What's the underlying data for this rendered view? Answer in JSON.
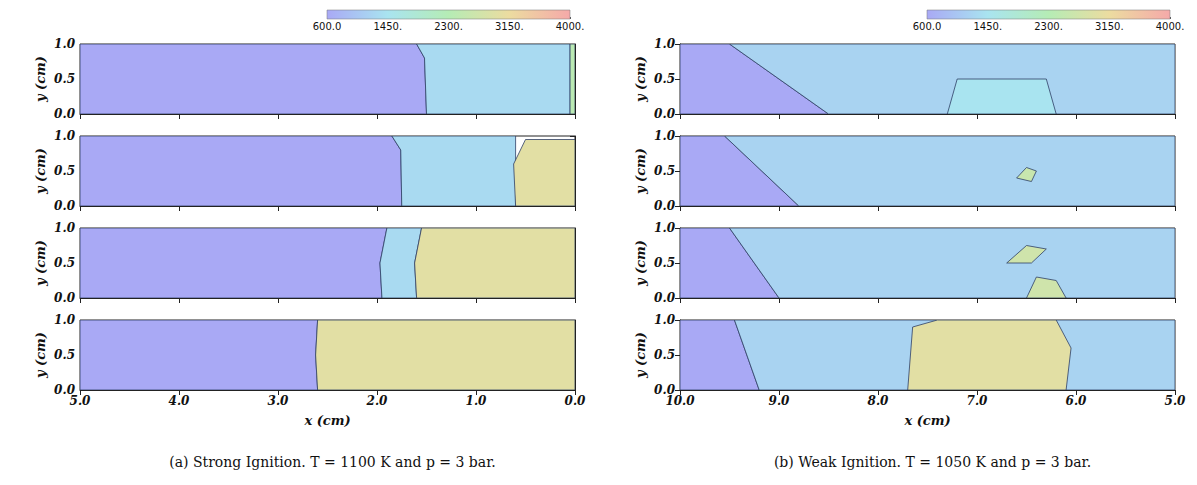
{
  "chart_data": [
    {
      "type": "field",
      "title": "(a) Strong Ignition. T = 1100 K and p = 3 bar.",
      "xlabel": "x (cm)",
      "ylabel": "y (cm)",
      "xlim": [
        5.0,
        0.0
      ],
      "xticks": [
        {
          "value": 5,
          "label": "5.0"
        },
        {
          "value": 4,
          "label": "4.0"
        },
        {
          "value": 3,
          "label": "3.0"
        },
        {
          "value": 2,
          "label": "2.0"
        },
        {
          "value": 1,
          "label": "1.0"
        },
        {
          "value": 0,
          "label": "0.0"
        }
      ],
      "ylim": [
        0,
        1
      ],
      "yticks": [
        {
          "value": 0,
          "label": "0.0"
        },
        {
          "value": 0.5,
          "label": "0.5"
        },
        {
          "value": 1,
          "label": "1.0"
        }
      ],
      "colorbar": {
        "range": [
          600,
          4000
        ],
        "ticks": [
          {
            "value": 600,
            "label": "600.0"
          },
          {
            "value": 1450,
            "label": "1450."
          },
          {
            "value": 2300,
            "label": "2300."
          },
          {
            "value": 3150,
            "label": "3150."
          },
          {
            "value": 4000,
            "label": "4000."
          }
        ]
      },
      "panels": [
        {
          "regions": [
            {
              "temperature": 600,
              "polygon": [
                [
                  5,
                  0
                ],
                [
                  5,
                  1
                ],
                [
                  1.6,
                  1
                ],
                [
                  1.52,
                  0.8
                ],
                [
                  1.5,
                  0
                ]
              ]
            },
            {
              "temperature": 1300,
              "polygon": [
                [
                  1.5,
                  0
                ],
                [
                  1.52,
                  0.8
                ],
                [
                  1.6,
                  1
                ],
                [
                  0.05,
                  1
                ],
                [
                  0.05,
                  0
                ]
              ]
            },
            {
              "temperature": 2400,
              "polygon": [
                [
                  0.05,
                  0
                ],
                [
                  0.05,
                  1
                ],
                [
                  0,
                  1
                ],
                [
                  0,
                  0
                ]
              ]
            }
          ]
        },
        {
          "regions": [
            {
              "temperature": 600,
              "polygon": [
                [
                  5,
                  0
                ],
                [
                  5,
                  1
                ],
                [
                  1.85,
                  1
                ],
                [
                  1.76,
                  0.8
                ],
                [
                  1.75,
                  0
                ]
              ]
            },
            {
              "temperature": 1300,
              "polygon": [
                [
                  1.75,
                  0
                ],
                [
                  1.76,
                  0.8
                ],
                [
                  1.85,
                  1
                ],
                [
                  0.6,
                  1
                ],
                [
                  0.6,
                  0
                ]
              ]
            },
            {
              "temperature": 3000,
              "polygon": [
                [
                  0.6,
                  0
                ],
                [
                  0.62,
                  0.6
                ],
                [
                  0.5,
                  0.95
                ],
                [
                  0,
                  0.95
                ],
                [
                  0,
                  0
                ]
              ]
            }
          ]
        },
        {
          "regions": [
            {
              "temperature": 600,
              "polygon": [
                [
                  5,
                  0
                ],
                [
                  5,
                  1
                ],
                [
                  1.9,
                  1
                ],
                [
                  1.97,
                  0.5
                ],
                [
                  1.95,
                  0
                ]
              ]
            },
            {
              "temperature": 1300,
              "polygon": [
                [
                  1.95,
                  0
                ],
                [
                  1.97,
                  0.5
                ],
                [
                  1.9,
                  1
                ],
                [
                  1.55,
                  1
                ],
                [
                  1.62,
                  0.5
                ],
                [
                  1.6,
                  0
                ]
              ]
            },
            {
              "temperature": 3000,
              "polygon": [
                [
                  1.6,
                  0
                ],
                [
                  1.62,
                  0.5
                ],
                [
                  1.55,
                  1
                ],
                [
                  0,
                  1
                ],
                [
                  0,
                  0
                ]
              ]
            }
          ]
        },
        {
          "regions": [
            {
              "temperature": 600,
              "polygon": [
                [
                  5,
                  0
                ],
                [
                  5,
                  1
                ],
                [
                  2.6,
                  1
                ],
                [
                  2.62,
                  0.5
                ],
                [
                  2.6,
                  0
                ]
              ]
            },
            {
              "temperature": 3000,
              "polygon": [
                [
                  2.6,
                  0
                ],
                [
                  2.62,
                  0.5
                ],
                [
                  2.6,
                  1
                ],
                [
                  0,
                  1
                ],
                [
                  0,
                  0
                ]
              ]
            }
          ]
        }
      ]
    },
    {
      "type": "field",
      "title": "(b) Weak Ignition. T = 1050 K and p = 3 bar.",
      "xlabel": "x (cm)",
      "ylabel": "y (cm)",
      "xlim": [
        10.0,
        5.0
      ],
      "xticks": [
        {
          "value": 10,
          "label": "10.0"
        },
        {
          "value": 9,
          "label": "9.0"
        },
        {
          "value": 8,
          "label": "8.0"
        },
        {
          "value": 7,
          "label": "7.0"
        },
        {
          "value": 6,
          "label": "6.0"
        },
        {
          "value": 5,
          "label": "5.0"
        }
      ],
      "ylim": [
        0,
        1
      ],
      "yticks": [
        {
          "value": 0,
          "label": "0.0"
        },
        {
          "value": 0.5,
          "label": "0.5"
        },
        {
          "value": 1,
          "label": "1.0"
        }
      ],
      "colorbar": {
        "range": [
          600,
          4000
        ],
        "ticks": [
          {
            "value": 600,
            "label": "600.0"
          },
          {
            "value": 1450,
            "label": "1450."
          },
          {
            "value": 2300,
            "label": "2300."
          },
          {
            "value": 3150,
            "label": "3150."
          },
          {
            "value": 4000,
            "label": "4000."
          }
        ]
      },
      "panels": [
        {
          "regions": [
            {
              "temperature": 600,
              "polygon": [
                [
                  10,
                  0
                ],
                [
                  10,
                  1
                ],
                [
                  9.5,
                  1
                ],
                [
                  8.5,
                  0
                ]
              ]
            },
            {
              "temperature": 1200,
              "polygon": [
                [
                  8.5,
                  0
                ],
                [
                  9.5,
                  1
                ],
                [
                  5,
                  1
                ],
                [
                  5,
                  0
                ]
              ]
            },
            {
              "temperature": 1450,
              "polygon": [
                [
                  7.3,
                  0
                ],
                [
                  7.2,
                  0.5
                ],
                [
                  6.3,
                  0.5
                ],
                [
                  6.2,
                  0
                ]
              ]
            }
          ]
        },
        {
          "regions": [
            {
              "temperature": 600,
              "polygon": [
                [
                  10,
                  0
                ],
                [
                  10,
                  1
                ],
                [
                  9.55,
                  1
                ],
                [
                  8.8,
                  0
                ]
              ]
            },
            {
              "temperature": 1200,
              "polygon": [
                [
                  8.8,
                  0
                ],
                [
                  9.55,
                  1
                ],
                [
                  5,
                  1
                ],
                [
                  5,
                  0
                ]
              ]
            },
            {
              "temperature": 2600,
              "polygon": [
                [
                  6.6,
                  0.4
                ],
                [
                  6.5,
                  0.55
                ],
                [
                  6.4,
                  0.5
                ],
                [
                  6.45,
                  0.35
                ]
              ]
            }
          ]
        },
        {
          "regions": [
            {
              "temperature": 600,
              "polygon": [
                [
                  10,
                  0
                ],
                [
                  10,
                  1
                ],
                [
                  9.5,
                  1
                ],
                [
                  9.0,
                  0
                ]
              ]
            },
            {
              "temperature": 1200,
              "polygon": [
                [
                  9.0,
                  0
                ],
                [
                  9.5,
                  1
                ],
                [
                  5,
                  1
                ],
                [
                  5,
                  0
                ]
              ]
            },
            {
              "temperature": 2700,
              "polygon": [
                [
                  6.7,
                  0.5
                ],
                [
                  6.5,
                  0.75
                ],
                [
                  6.3,
                  0.7
                ],
                [
                  6.45,
                  0.5
                ]
              ]
            },
            {
              "temperature": 2700,
              "polygon": [
                [
                  6.5,
                  0
                ],
                [
                  6.4,
                  0.3
                ],
                [
                  6.2,
                  0.25
                ],
                [
                  6.1,
                  0
                ]
              ]
            }
          ]
        },
        {
          "regions": [
            {
              "temperature": 600,
              "polygon": [
                [
                  10,
                  0
                ],
                [
                  10,
                  1
                ],
                [
                  9.45,
                  1
                ],
                [
                  9.2,
                  0
                ]
              ]
            },
            {
              "temperature": 1200,
              "polygon": [
                [
                  9.2,
                  0
                ],
                [
                  9.45,
                  1
                ],
                [
                  5,
                  1
                ],
                [
                  5,
                  0
                ]
              ]
            },
            {
              "temperature": 3000,
              "polygon": [
                [
                  7.7,
                  0
                ],
                [
                  7.65,
                  0.9
                ],
                [
                  7.4,
                  1
                ],
                [
                  6.2,
                  1
                ],
                [
                  6.05,
                  0.6
                ],
                [
                  6.1,
                  0
                ]
              ]
            }
          ]
        }
      ]
    }
  ]
}
